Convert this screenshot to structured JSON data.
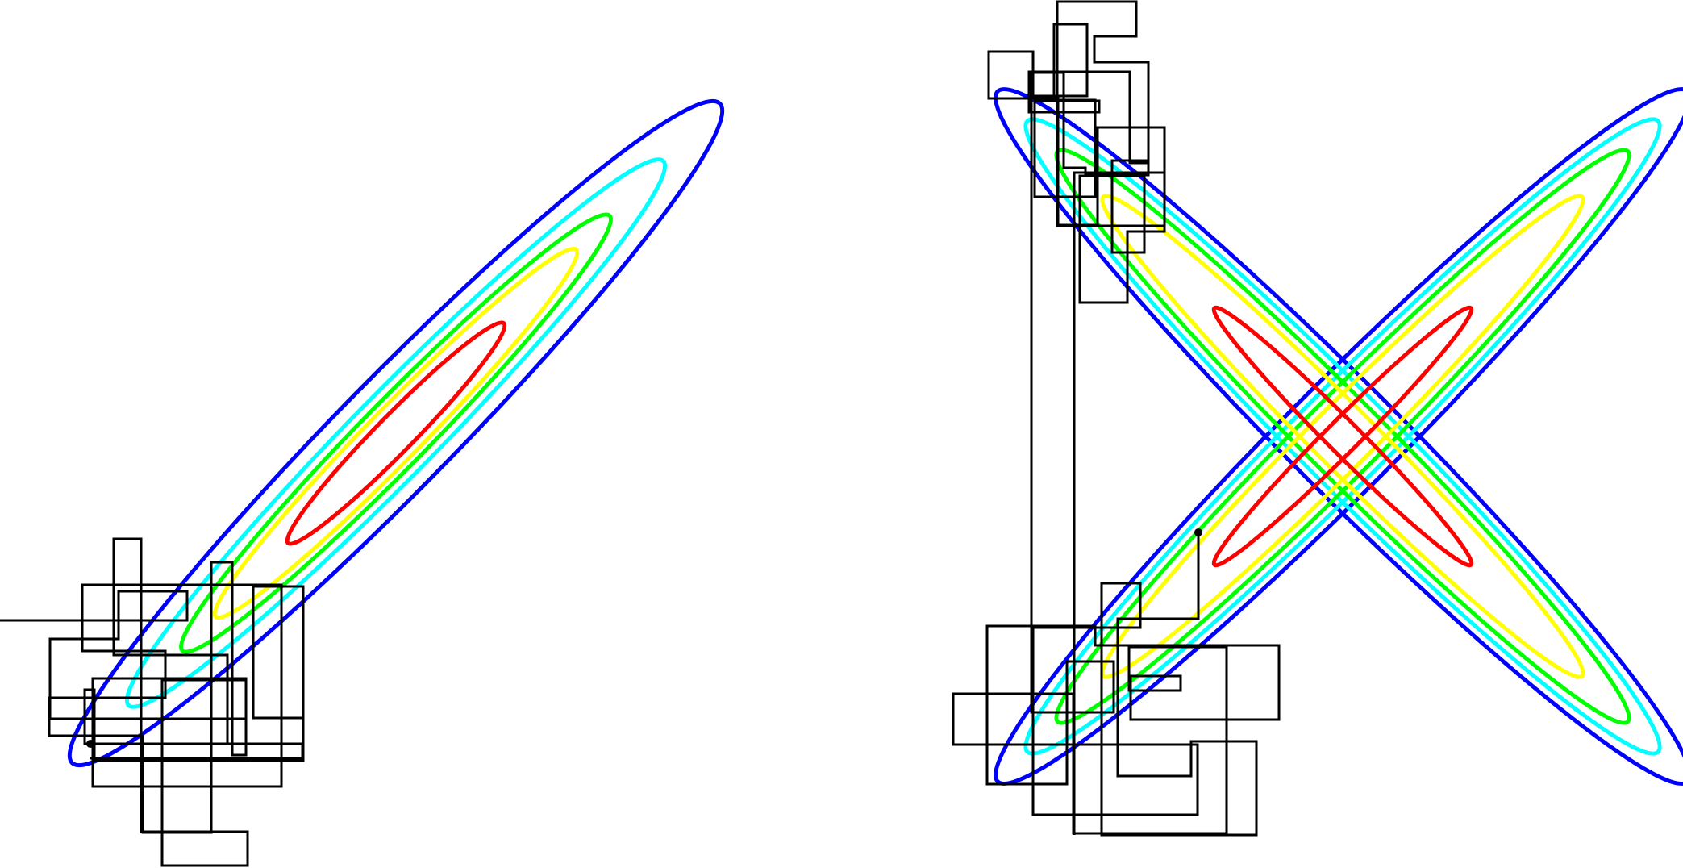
{
  "panels": [
    {
      "name": "left-correlated-gaussian",
      "contour_colors": [
        "#0000ff",
        "#00ffff",
        "#00ff00",
        "#ffff00",
        "#ff0000"
      ],
      "path_color": "#000000",
      "start_marker_color": "#000000"
    },
    {
      "name": "right-cross-distribution",
      "contour_colors": [
        "#0000ff",
        "#00ffff",
        "#00ff00",
        "#ffff00",
        "#ff0000"
      ],
      "path_color": "#000000",
      "start_marker_color": "#000000"
    }
  ]
}
